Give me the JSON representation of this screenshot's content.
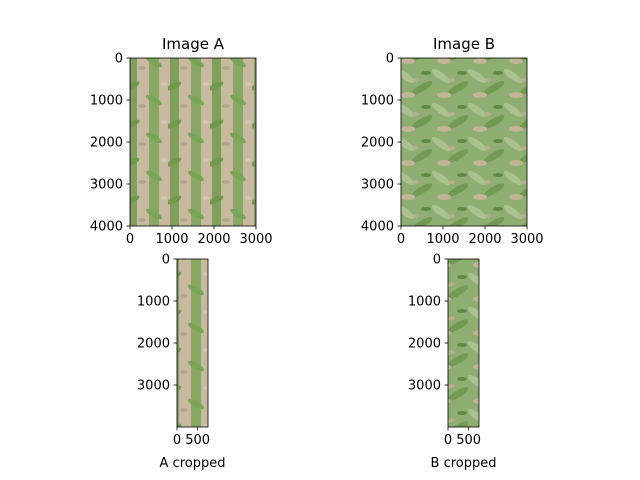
{
  "chart_data": [
    {
      "type": "image",
      "title": "Image A",
      "xlabel": "",
      "xlim": [
        0,
        3000
      ],
      "ylim": [
        4000,
        0
      ],
      "xticks": [
        0,
        1000,
        2000,
        3000
      ],
      "yticks": [
        0,
        1000,
        2000,
        3000,
        4000
      ],
      "grid": false,
      "content": "aerial photo of corn crop rows on bare soil"
    },
    {
      "type": "image",
      "title": "Image B",
      "xlabel": "",
      "xlim": [
        0,
        3000
      ],
      "ylim": [
        4000,
        0
      ],
      "xticks": [
        0,
        1000,
        2000,
        3000
      ],
      "yticks": [
        0,
        1000,
        2000,
        3000,
        4000
      ],
      "grid": false,
      "content": "aerial photo of dense corn canopy"
    },
    {
      "type": "image",
      "title": "",
      "xlabel": "A cropped",
      "xlim": [
        0,
        750
      ],
      "ylim": [
        4000,
        0
      ],
      "xticks": [
        0,
        500
      ],
      "yticks": [
        0,
        1000,
        2000,
        3000
      ],
      "grid": false,
      "content": "vertical strip cropped from Image A"
    },
    {
      "type": "image",
      "title": "",
      "xlabel": "B cropped",
      "xlim": [
        0,
        750
      ],
      "ylim": [
        4000,
        0
      ],
      "xticks": [
        0,
        500
      ],
      "yticks": [
        0,
        1000,
        2000,
        3000
      ],
      "grid": false,
      "content": "vertical strip cropped from Image B"
    }
  ]
}
